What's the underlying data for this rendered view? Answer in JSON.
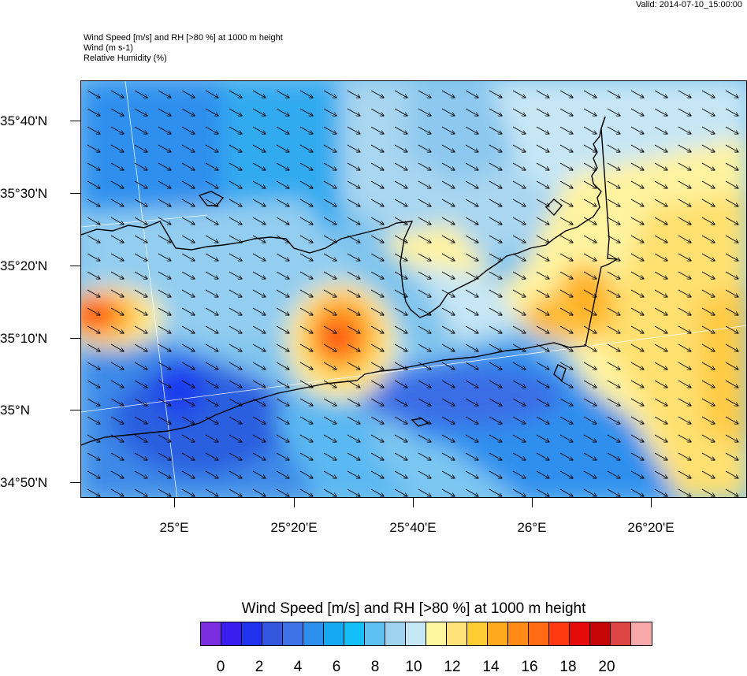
{
  "header": {
    "valid": "Valid: 2014-07-10_15:00:00",
    "title_lines": [
      "Wind Speed [m/s] and RH [>80 %] at 1000 m height",
      "Wind   (m s-1)",
      "Relative Humidity   (%)"
    ]
  },
  "axes": {
    "y_labels": [
      "35°40'N",
      "35°30'N",
      "35°20'N",
      "35°10'N",
      "35°N",
      "34°50'N"
    ],
    "x_labels": [
      "25°E",
      "25°20'E",
      "25°40'E",
      "26°E",
      "26°20'E"
    ]
  },
  "colorbar": {
    "title": "Wind Speed [m/s] and RH [>80 %] at 1000 m height",
    "colors": [
      "#7b2ee0",
      "#3a1ef0",
      "#1f32ee",
      "#3457e0",
      "#3d73e6",
      "#2d8fee",
      "#17a8f2",
      "#12c0f7",
      "#5ec0f2",
      "#9fd2ef",
      "#c4e6f5",
      "#fff7a0",
      "#ffe37a",
      "#ffcc33",
      "#ffaa1e",
      "#ff8a15",
      "#ff6a12",
      "#ff3a10",
      "#e60b0b",
      "#c40606",
      "#dd4444",
      "#f7a9a9"
    ],
    "labels": [
      "0",
      "2",
      "4",
      "6",
      "8",
      "10",
      "12",
      "14",
      "16",
      "18",
      "20"
    ]
  }
}
